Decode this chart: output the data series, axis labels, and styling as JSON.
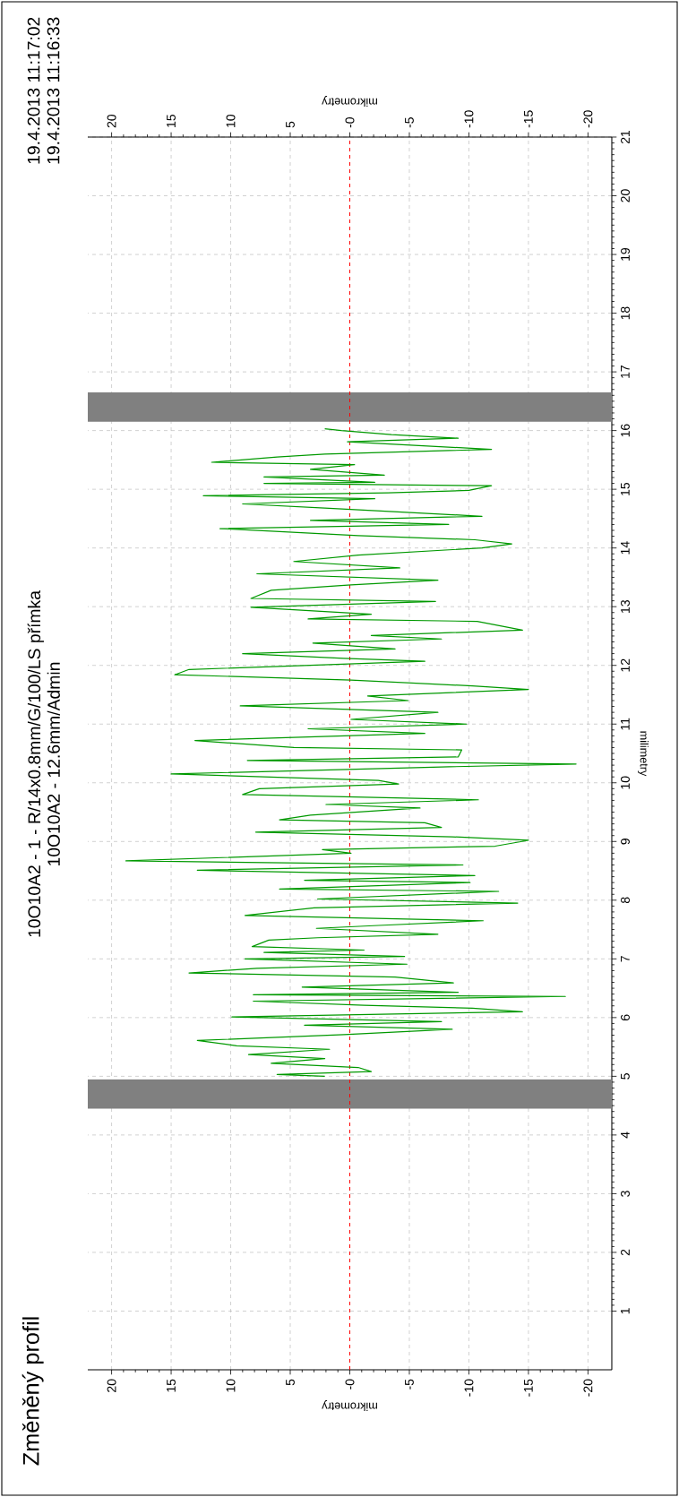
{
  "chart_data": {
    "type": "line",
    "title": "Změněný profil",
    "annotations": [
      "10O10A2 - 1 - R/14x0.8mm/G/100/LS přímka",
      "10O10A2 - 12.6mm/Admin",
      "19.4.2013 11:17:02",
      "19.4.2013 11:16:33"
    ],
    "xlabel": "mikrometry",
    "x2label": "mikrometry",
    "ylabel": "milimetry",
    "ylim": [
      0,
      21
    ],
    "yticks": [
      1,
      2,
      3,
      4,
      5,
      6,
      7,
      8,
      9,
      10,
      11,
      12,
      13,
      14,
      15,
      16,
      17,
      18,
      19,
      20,
      21
    ],
    "xlim": [
      22,
      -22
    ],
    "xticks": [
      20,
      15,
      10,
      5,
      {
        "value": 0,
        "label": "-0"
      },
      -5,
      -10,
      -15,
      -20
    ],
    "x2lim": [
      22,
      -22
    ],
    "x2ticks": [
      20,
      15,
      10,
      5,
      {
        "value": 0,
        "label": "-0"
      },
      -5,
      -10,
      -15,
      -20
    ],
    "grid": true,
    "marker": "none",
    "line_style": "solid",
    "ref_lines": [
      {
        "axis": "x",
        "value": 0,
        "color": "#ff0000",
        "line_style": "dashed"
      }
    ],
    "bands": [
      {
        "axis": "y",
        "from": 4.45,
        "to": 4.95,
        "color": "#808080"
      },
      {
        "axis": "y",
        "from": 16.15,
        "to": 16.65,
        "color": "#808080"
      }
    ],
    "series": [
      {
        "color": "#009900",
        "x": [
          2.1,
          6.1,
          -1.8,
          -0.7,
          6.6,
          2.1,
          8.5,
          1.7,
          9.5,
          12.8,
          0.5,
          -8.6,
          3.8,
          -7.7,
          9.9,
          -14.5,
          -10.3,
          -1.2,
          8.1,
          -18.1,
          8.1,
          -9.1,
          4.0,
          -8.7,
          -3.8,
          13.5,
          7.8,
          -4.8,
          8.8,
          -4.6,
          7.2,
          -1.2,
          8.2,
          6.8,
          2.7,
          -7.4,
          2.8,
          -2.4,
          -11.2,
          8.8,
          3.0,
          -14.1,
          2.7,
          -12.5,
          5.9,
          -10.1,
          3.8,
          -10.5,
          12.8,
          -9.5,
          18.8,
          -0.1,
          2.3,
          -12.2,
          -15.0,
          -8.6,
          7.9,
          -7.7,
          -6.3,
          5.9,
          3.3,
          -5.9,
          2.0,
          -10.8,
          9.0,
          7.6,
          -4.1,
          -2.4,
          15.0,
          -7.7,
          -19.0,
          8.6,
          -9.1,
          -9.4,
          4.7,
          13.0,
          -6.3,
          3.5,
          -9.8,
          -0.1,
          -7.4,
          9.2,
          -4.9,
          -1.5,
          -15.0,
          -10.3,
          -0.1,
          14.7,
          13.5,
          -6.3,
          0.5,
          9.0,
          -3.8,
          3.1,
          -7.7,
          -1.8,
          -14.5,
          -10.7,
          3.5,
          -1.8,
          8.3,
          -7.2,
          8.3,
          6.6,
          -0.1,
          -7.4,
          7.8,
          -4.2,
          4.7,
          -0.7,
          -11.1,
          -13.6,
          -10.5,
          -0.7,
          10.9,
          -8.3,
          3.3,
          -11.1,
          -2.6,
          2.1,
          9.0,
          -2.1,
          12.3,
          -3.2,
          -10.0,
          -11.9,
          7.2,
          -2.1,
          7.2,
          -2.9,
          3.3,
          -0.4,
          11.6,
          6.1,
          2.1,
          -11.9,
          0.2,
          -9.1,
          -3.5,
          0.7,
          2.1
        ],
        "values": [
          5.0,
          5.03,
          5.08,
          5.15,
          5.22,
          5.3,
          5.37,
          5.46,
          5.52,
          5.61,
          5.71,
          5.8,
          5.87,
          5.93,
          6.01,
          6.1,
          6.16,
          6.21,
          6.28,
          6.36,
          6.39,
          6.43,
          6.52,
          6.59,
          6.69,
          6.76,
          6.84,
          6.91,
          7.0,
          7.04,
          7.11,
          7.15,
          7.21,
          7.32,
          7.36,
          7.42,
          7.52,
          7.57,
          7.65,
          7.74,
          7.87,
          7.95,
          8.02,
          8.15,
          8.19,
          8.3,
          8.34,
          8.42,
          8.51,
          8.6,
          8.67,
          8.8,
          8.86,
          8.92,
          9.02,
          9.08,
          9.16,
          9.24,
          9.32,
          9.37,
          9.45,
          9.57,
          9.63,
          9.71,
          9.8,
          9.9,
          9.98,
          10.04,
          10.15,
          10.27,
          10.32,
          10.38,
          10.44,
          10.56,
          10.6,
          10.72,
          10.84,
          10.92,
          11.0,
          11.08,
          11.2,
          11.31,
          11.4,
          11.48,
          11.59,
          11.65,
          11.75,
          11.84,
          11.93,
          12.07,
          12.12,
          12.2,
          12.28,
          12.38,
          12.45,
          12.51,
          12.6,
          12.75,
          12.79,
          12.87,
          12.99,
          13.09,
          13.14,
          13.28,
          13.37,
          13.45,
          13.56,
          13.66,
          13.77,
          13.88,
          14.0,
          14.07,
          14.14,
          14.21,
          14.33,
          14.4,
          14.47,
          14.54,
          14.63,
          14.68,
          14.75,
          14.84,
          14.89,
          14.94,
          14.98,
          15.06,
          15.1,
          15.12,
          15.21,
          15.24,
          15.34,
          15.42,
          15.46,
          15.55,
          15.6,
          15.68,
          15.81,
          15.87,
          15.93,
          16.0,
          16.03
        ]
      }
    ]
  }
}
